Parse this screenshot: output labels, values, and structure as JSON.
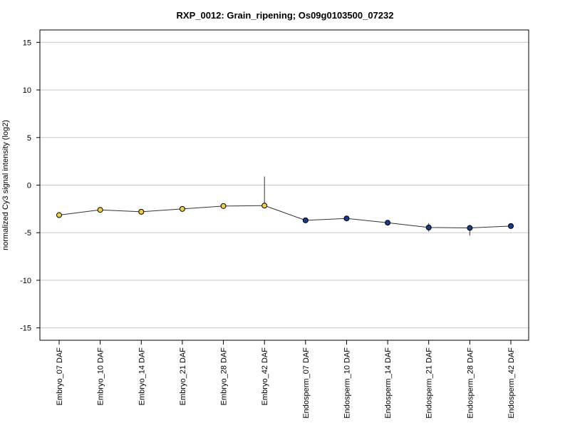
{
  "chart_data": {
    "type": "line",
    "title": "RXP_0012: Grain_ripening; Os09g0103500_07232",
    "xlabel": "",
    "ylabel": "normalized Cy3 signal intensity (log2)",
    "ylim": [
      -16.3,
      16.3
    ],
    "yticks": [
      15,
      10,
      5,
      0,
      -5,
      -10,
      -15
    ],
    "grid": "horizontal",
    "categories": [
      "Embryo_07 DAF",
      "Embryo_10 DAF",
      "Embryo_14 DAF",
      "Embryo_21 DAF",
      "Embryo_28 DAF",
      "Embryo_42 DAF",
      "Endosperm_07 DAF",
      "Endosperm_10 DAF",
      "Endosperm_14 DAF",
      "Endosperm_21 DAF",
      "Endosperm_28 DAF",
      "Endosperm_42 DAF"
    ],
    "values": [
      -3.15,
      -2.6,
      -2.8,
      -2.5,
      -2.2,
      -2.15,
      -3.7,
      -3.5,
      -3.95,
      -4.45,
      -4.5,
      -4.3
    ],
    "err_low": [
      -3.3,
      -2.75,
      -2.95,
      -2.65,
      -2.3,
      -2.25,
      -3.8,
      -3.8,
      -4.05,
      -4.9,
      -5.3,
      -4.4
    ],
    "err_high": [
      -2.9,
      -2.45,
      -2.65,
      -2.35,
      -2.1,
      0.9,
      -3.6,
      -3.3,
      -3.85,
      -4.0,
      -4.2,
      -4.2
    ],
    "point_colors": [
      "#f0d040",
      "#f0d040",
      "#f0d040",
      "#f0d040",
      "#f0d040",
      "#f0d040",
      "#1a3a8a",
      "#1a3a8a",
      "#1a3a8a",
      "#1a3a8a",
      "#1a3a8a",
      "#1a3a8a"
    ],
    "line_color": "#333333"
  }
}
